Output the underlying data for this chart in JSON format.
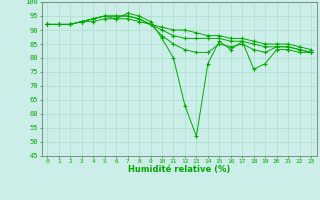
{
  "xlabel": "Humidité relative (%)",
  "background_color": "#cceee8",
  "grid_color": "#aaddcc",
  "line_color": "#00aa00",
  "ylim": [
    45,
    100
  ],
  "xlim": [
    -0.5,
    23.5
  ],
  "yticks": [
    45,
    50,
    55,
    60,
    65,
    70,
    75,
    80,
    85,
    90,
    95,
    100
  ],
  "xticks": [
    0,
    1,
    2,
    3,
    4,
    5,
    6,
    7,
    8,
    9,
    10,
    11,
    12,
    13,
    14,
    15,
    16,
    17,
    18,
    19,
    20,
    21,
    22,
    23
  ],
  "series": [
    [
      92,
      92,
      92,
      93,
      94,
      95,
      94,
      96,
      95,
      93,
      87,
      80,
      63,
      52,
      78,
      86,
      83,
      86,
      76,
      78,
      83,
      83,
      82,
      82
    ],
    [
      92,
      92,
      92,
      93,
      94,
      95,
      95,
      95,
      94,
      92,
      88,
      85,
      83,
      82,
      82,
      85,
      84,
      85,
      83,
      82,
      84,
      84,
      83,
      82
    ],
    [
      92,
      92,
      92,
      93,
      94,
      95,
      95,
      95,
      94,
      92,
      90,
      88,
      87,
      87,
      87,
      87,
      86,
      86,
      85,
      84,
      84,
      84,
      83,
      82
    ],
    [
      92,
      92,
      92,
      93,
      93,
      94,
      94,
      94,
      93,
      92,
      91,
      90,
      90,
      89,
      88,
      88,
      87,
      87,
      86,
      85,
      85,
      85,
      84,
      83
    ]
  ]
}
